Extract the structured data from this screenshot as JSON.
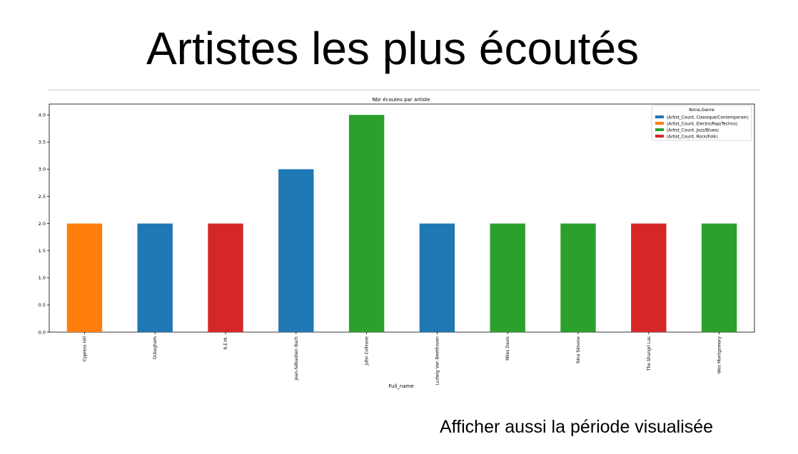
{
  "slide": {
    "title": "Artistes les plus écoutés",
    "note": "Afficher aussi la période visualisée"
  },
  "chart_data": {
    "type": "bar",
    "title": "Nbr écoutes par artiste",
    "xlabel": "Full_name",
    "ylabel": "",
    "ylim": [
      0,
      4.2
    ],
    "yticks": [
      0.0,
      0.5,
      1.0,
      1.5,
      2.0,
      2.5,
      3.0,
      3.5,
      4.0
    ],
    "grid": false,
    "legend": {
      "title": "None,Genre",
      "placement": "top-right",
      "entries": [
        {
          "label": "(Artist_Count, Classique/Contemporain)",
          "color": "#1f77b4"
        },
        {
          "label": "(Artist_Count, Electro/Rap/Techno)",
          "color": "#ff7f0e"
        },
        {
          "label": "(Artist_Count, Jazz/Blues)",
          "color": "#2ca02c"
        },
        {
          "label": "(Artist_Count, Rock/Folk)",
          "color": "#d62728"
        }
      ]
    },
    "categories": [
      "Cypress Hill",
      "Ockeghem",
      "R.E.M.",
      "Jean-Sébastien Bach",
      "John Coltrane",
      "Ludwig Van Beethoven",
      "Miles Davis",
      "Nina Simone",
      "The Shangri Las",
      "Wes Montgomery"
    ],
    "values": [
      2,
      2,
      2,
      3,
      4,
      2,
      2,
      2,
      2,
      2
    ],
    "genres": [
      "Electro/Rap/Techno",
      "Classique/Contemporain",
      "Rock/Folk",
      "Classique/Contemporain",
      "Jazz/Blues",
      "Classique/Contemporain",
      "Jazz/Blues",
      "Jazz/Blues",
      "Rock/Folk",
      "Jazz/Blues"
    ],
    "genre_colors": {
      "Classique/Contemporain": "#1f77b4",
      "Electro/Rap/Techno": "#ff7f0e",
      "Jazz/Blues": "#2ca02c",
      "Rock/Folk": "#d62728"
    }
  }
}
